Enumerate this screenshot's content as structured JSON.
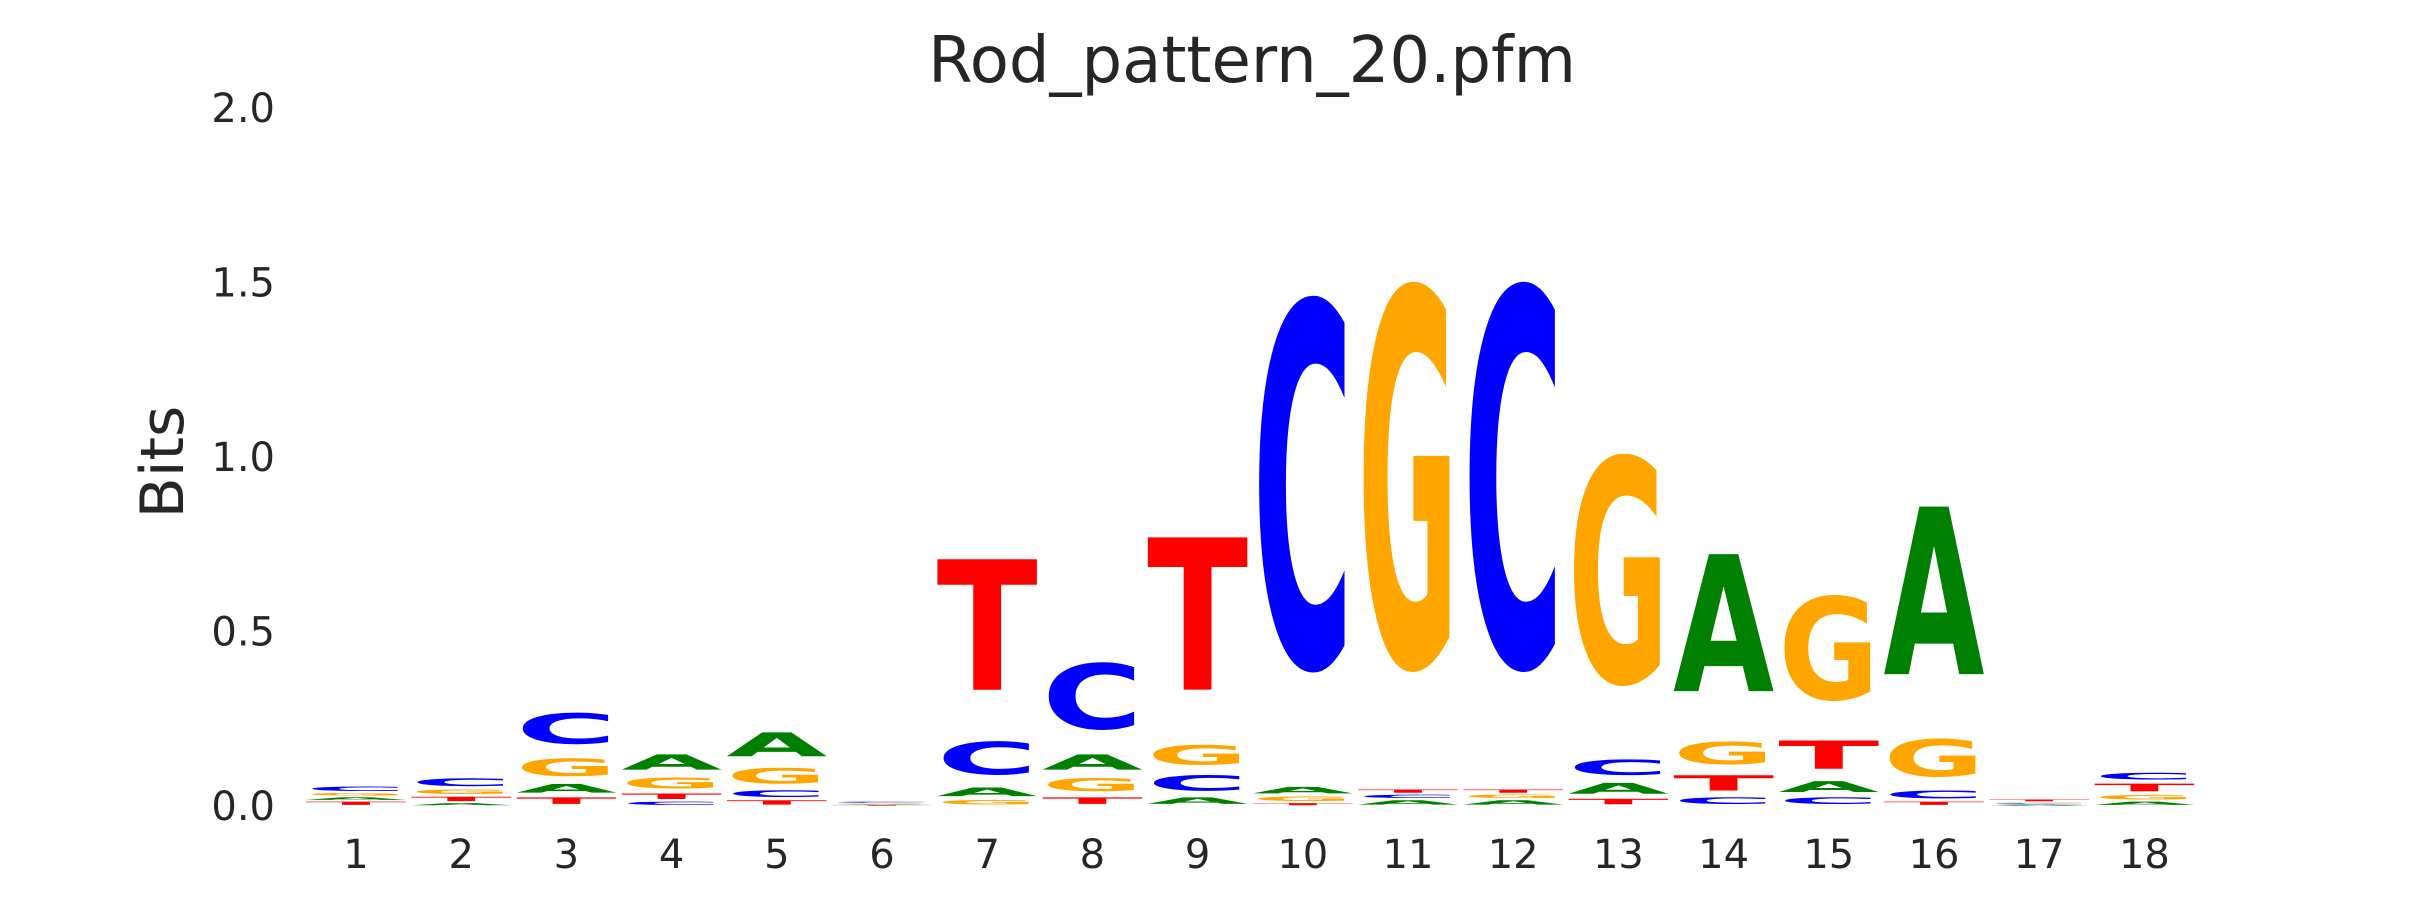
{
  "chart_data": {
    "type": "sequence-logo",
    "title": "Rod_pattern_20.pfm",
    "ylabel": "Bits",
    "xlabel": "",
    "ylim": [
      0,
      2.0
    ],
    "y_ticks": [
      "0.0",
      "0.5",
      "1.0",
      "1.5",
      "2.0"
    ],
    "positions": [
      "1",
      "2",
      "3",
      "4",
      "5",
      "6",
      "7",
      "8",
      "9",
      "10",
      "11",
      "12",
      "13",
      "14",
      "15",
      "16",
      "17",
      "18"
    ],
    "colors": {
      "A": "#008000",
      "C": "#0000ff",
      "G": "#ffa500",
      "T": "#ff0000"
    },
    "grid": false,
    "stacks": [
      [
        [
          "T",
          0.015
        ],
        [
          "A",
          0.012
        ],
        [
          "G",
          0.012
        ],
        [
          "C",
          0.02
        ]
      ],
      [
        [
          "A",
          0.01
        ],
        [
          "T",
          0.02
        ],
        [
          "G",
          0.02
        ],
        [
          "C",
          0.035
        ]
      ],
      [
        [
          "T",
          0.03
        ],
        [
          "A",
          0.04
        ],
        [
          "G",
          0.08
        ],
        [
          "C",
          0.14
        ]
      ],
      [
        [
          "C",
          0.015
        ],
        [
          "T",
          0.025
        ],
        [
          "G",
          0.05
        ],
        [
          "A",
          0.07
        ]
      ],
      [
        [
          "T",
          0.02
        ],
        [
          "C",
          0.03
        ],
        [
          "G",
          0.07
        ],
        [
          "A",
          0.11
        ]
      ],
      [
        [
          "T",
          0.003
        ],
        [
          "A",
          0.003
        ],
        [
          "G",
          0.003
        ],
        [
          "C",
          0.004
        ]
      ],
      [
        [
          "G",
          0.02
        ],
        [
          "A",
          0.04
        ],
        [
          "C",
          0.15
        ],
        [
          "T",
          0.6
        ]
      ],
      [
        [
          "T",
          0.03
        ],
        [
          "G",
          0.06
        ],
        [
          "A",
          0.07
        ],
        [
          "C",
          0.3
        ]
      ],
      [
        [
          "A",
          0.03
        ],
        [
          "C",
          0.07
        ],
        [
          "G",
          0.09
        ],
        [
          "T",
          0.7
        ]
      ],
      [
        [
          "T",
          0.01
        ],
        [
          "G",
          0.02
        ],
        [
          "A",
          0.03
        ],
        [
          "C",
          1.67
        ]
      ],
      [
        [
          "A",
          0.02
        ],
        [
          "C",
          0.015
        ],
        [
          "T",
          0.015
        ],
        [
          "G",
          1.73
        ]
      ],
      [
        [
          "A",
          0.02
        ],
        [
          "G",
          0.015
        ],
        [
          "T",
          0.015
        ],
        [
          "C",
          1.73
        ]
      ],
      [
        [
          "T",
          0.025
        ],
        [
          "A",
          0.05
        ],
        [
          "C",
          0.07
        ],
        [
          "G",
          1.03
        ]
      ],
      [
        [
          "C",
          0.03
        ],
        [
          "T",
          0.07
        ],
        [
          "G",
          0.1
        ],
        [
          "A",
          0.63
        ]
      ],
      [
        [
          "C",
          0.03
        ],
        [
          "A",
          0.05
        ],
        [
          "T",
          0.13
        ],
        [
          "G",
          0.47
        ]
      ],
      [
        [
          "T",
          0.015
        ],
        [
          "C",
          0.035
        ],
        [
          "G",
          0.17
        ],
        [
          "A",
          0.77
        ]
      ],
      [
        [
          "A",
          0.004
        ],
        [
          "C",
          0.004
        ],
        [
          "G",
          0.004
        ],
        [
          "T",
          0.008
        ]
      ],
      [
        [
          "A",
          0.015
        ],
        [
          "G",
          0.02
        ],
        [
          "T",
          0.035
        ],
        [
          "C",
          0.03
        ]
      ]
    ]
  }
}
